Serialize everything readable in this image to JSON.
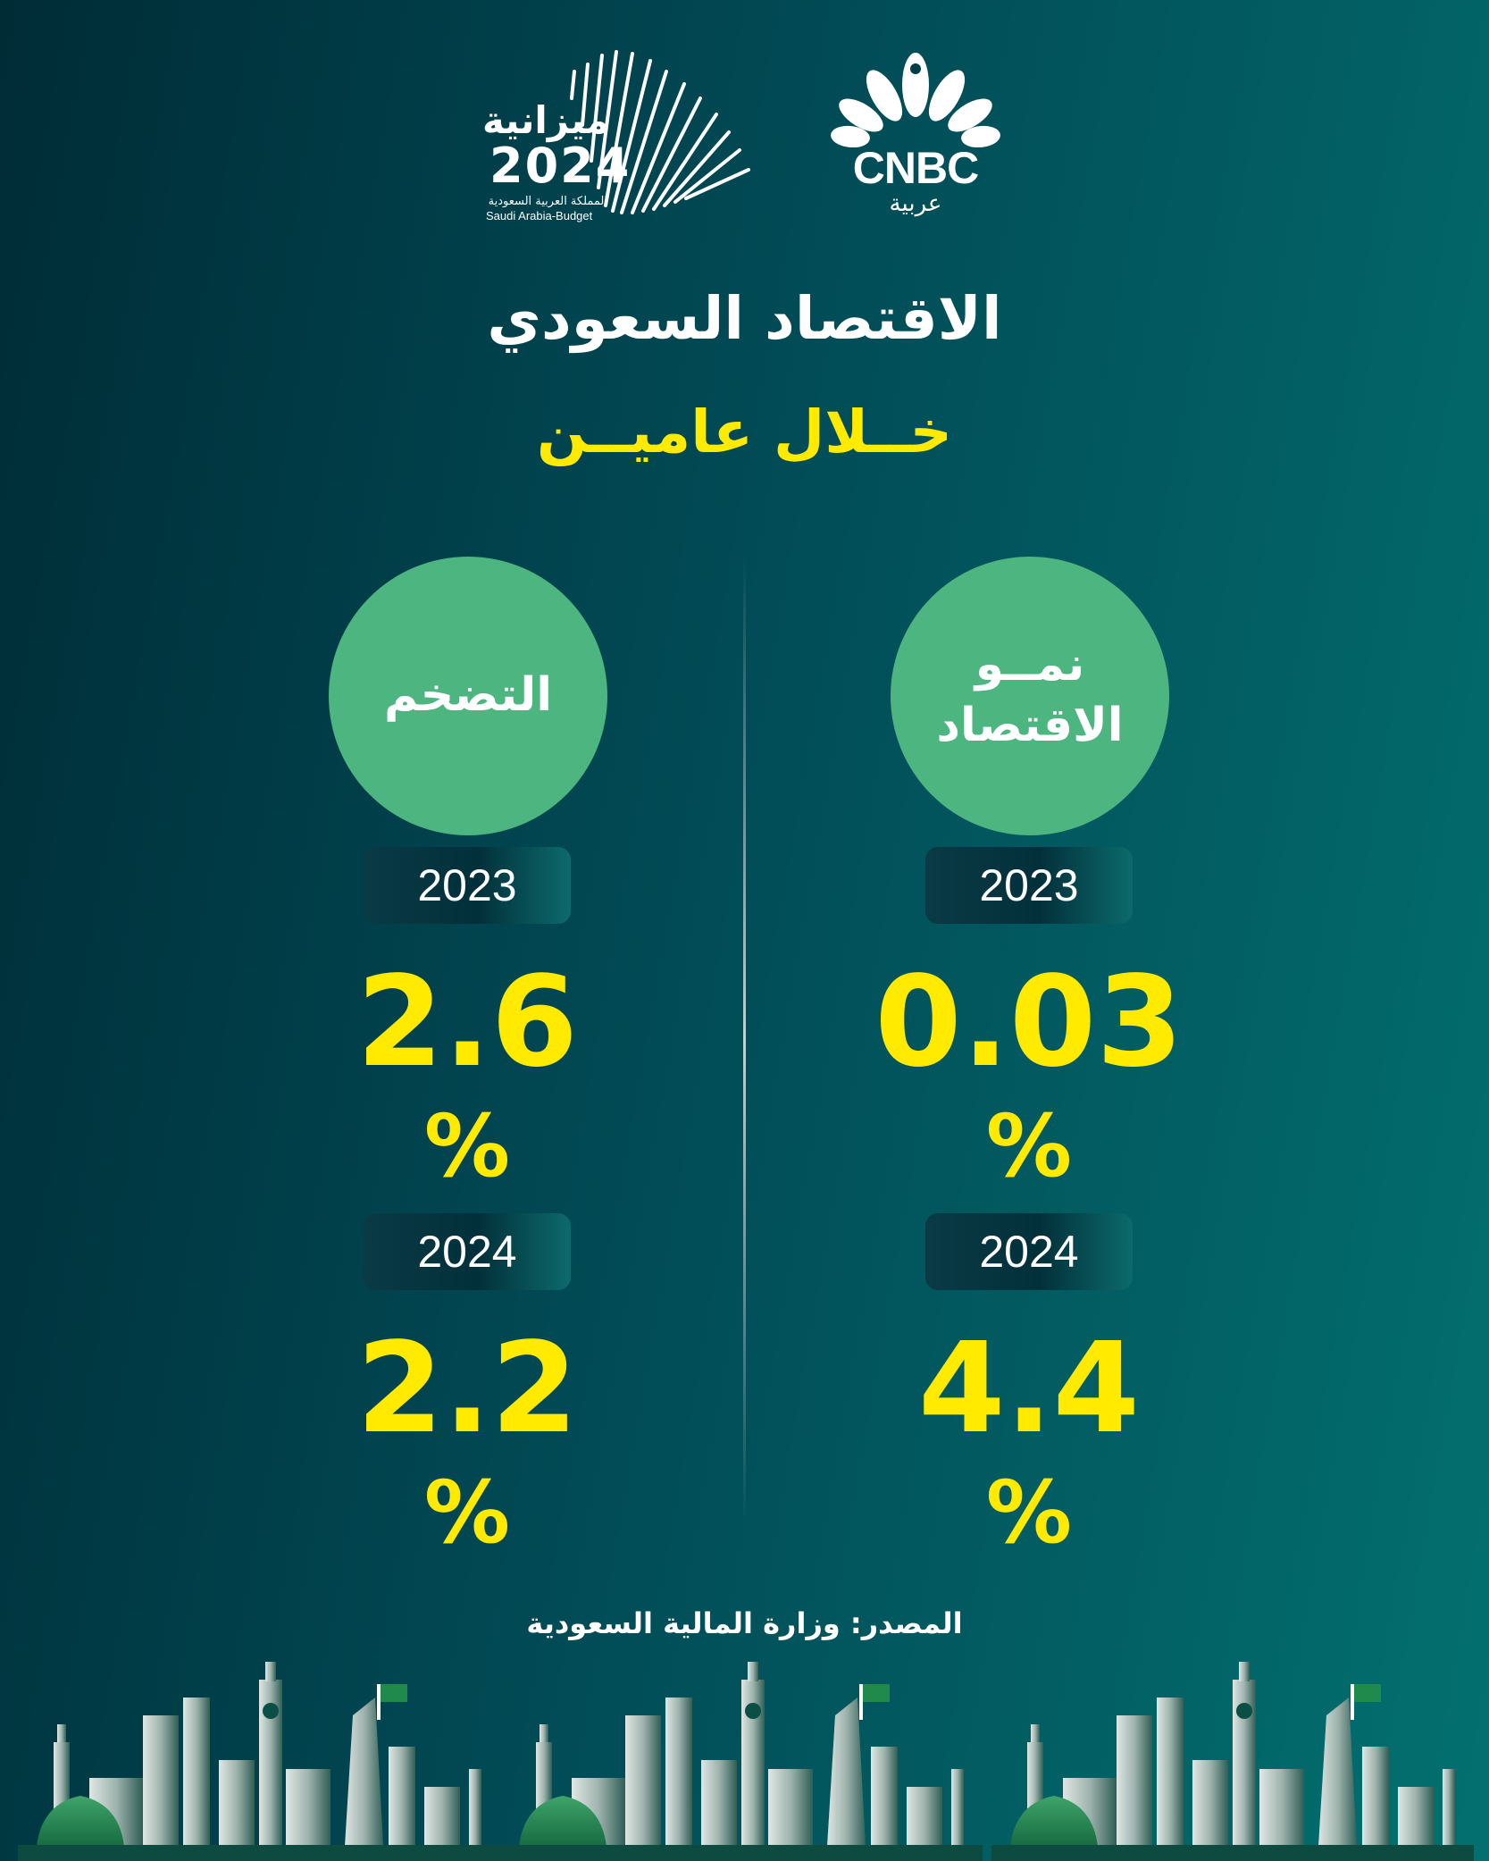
{
  "logos": {
    "budget": {
      "title": "ميزانية",
      "year": "2024",
      "subtitle_ar": "المملكة العربية السعودية",
      "subtitle_en": "Saudi Arabia-Budget"
    },
    "cnbc": {
      "wordmark": "CNBC",
      "arabic": "عربية"
    }
  },
  "header": {
    "title": "الاقتصاد السعودي",
    "subtitle": "خــلال عاميــن"
  },
  "columns": [
    {
      "heading": "التضخم",
      "entries": [
        {
          "year": "2023",
          "value": "2.6",
          "unit": "%"
        },
        {
          "year": "2024",
          "value": "2.2",
          "unit": "%"
        }
      ]
    },
    {
      "heading": "نمــو\nالاقتصاد",
      "entries": [
        {
          "year": "2023",
          "value": "0.03",
          "unit": "%"
        },
        {
          "year": "2024",
          "value": "4.4",
          "unit": "%"
        }
      ]
    }
  ],
  "footer": {
    "source": "المصدر: وزارة المالية السعودية"
  },
  "colors": {
    "accent_yellow": "#ffea00",
    "circle_green": "#4db580",
    "bg_dark": "#002c36",
    "bg_teal": "#03706f"
  }
}
